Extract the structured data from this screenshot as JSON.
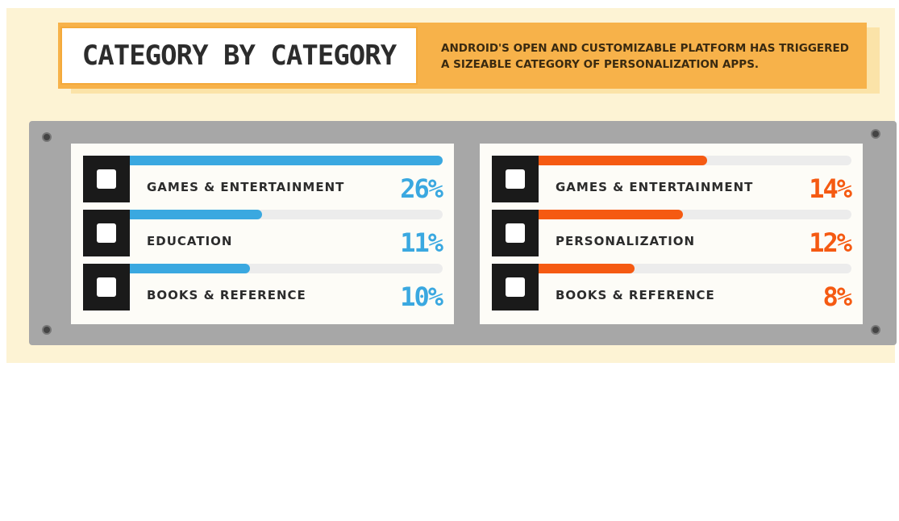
{
  "header": {
    "title": "CATEGORY BY CATEGORY",
    "subtitle": "ANDROID'S OPEN AND CUSTOMIZABLE PLATFORM HAS TRIGGERED A SIZEABLE CATEGORY OF PERSONALIZATION APPS."
  },
  "chart_data": [
    {
      "type": "bar",
      "orientation": "horizontal",
      "categories": [
        "GAMES & ENTERTAINMENT",
        "EDUCATION",
        "BOOKS & REFERENCE"
      ],
      "values": [
        26,
        11,
        10
      ],
      "value_labels": [
        "26%",
        "11%",
        "10%"
      ],
      "color": "#3aa8e0",
      "xlim": [
        0,
        26
      ]
    },
    {
      "type": "bar",
      "orientation": "horizontal",
      "categories": [
        "GAMES & ENTERTAINMENT",
        "PERSONALIZATION",
        "BOOKS & REFERENCE"
      ],
      "values": [
        14,
        12,
        8
      ],
      "value_labels": [
        "14%",
        "12%",
        "8%"
      ],
      "color": "#f55a12",
      "xlim": [
        0,
        26
      ]
    }
  ]
}
